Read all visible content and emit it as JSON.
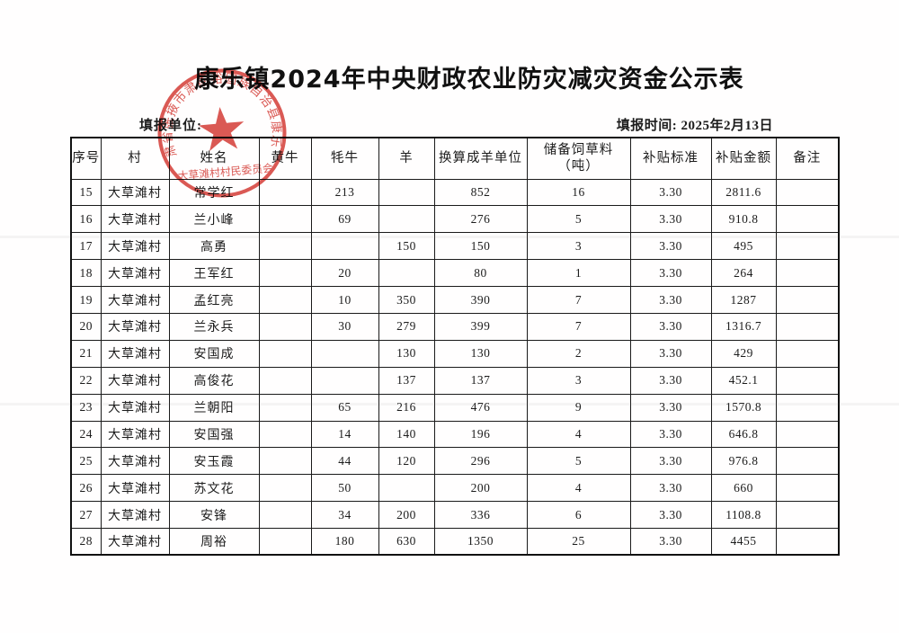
{
  "page": {
    "title": "康乐镇2024年中央财政农业防灾减灾资金公示表",
    "form_unit_label": "填报单位:",
    "form_time_label": "填报时间: 2025年2月13日"
  },
  "seal": {
    "ring_text": "甘肃省张掖市肃南裕固族自治县康乐镇",
    "bottom_text": "大草滩村村民委员会",
    "star_icon": "red-star",
    "color": "#d5423c"
  },
  "table": {
    "headers": [
      "序号",
      "村",
      "姓名",
      "黄牛",
      "牦牛",
      "羊",
      "换算成羊单位",
      "储备饲草料\n（吨）",
      "补贴标准",
      "补贴金额",
      "备注"
    ],
    "rows": [
      [
        "15",
        "大草滩村",
        "常学红",
        "",
        "213",
        "",
        "852",
        "16",
        "3.30",
        "2811.6",
        ""
      ],
      [
        "16",
        "大草滩村",
        "兰小峰",
        "",
        "69",
        "",
        "276",
        "5",
        "3.30",
        "910.8",
        ""
      ],
      [
        "17",
        "大草滩村",
        "高勇",
        "",
        "",
        "150",
        "150",
        "3",
        "3.30",
        "495",
        ""
      ],
      [
        "18",
        "大草滩村",
        "王军红",
        "",
        "20",
        "",
        "80",
        "1",
        "3.30",
        "264",
        ""
      ],
      [
        "19",
        "大草滩村",
        "孟红亮",
        "",
        "10",
        "350",
        "390",
        "7",
        "3.30",
        "1287",
        ""
      ],
      [
        "20",
        "大草滩村",
        "兰永兵",
        "",
        "30",
        "279",
        "399",
        "7",
        "3.30",
        "1316.7",
        ""
      ],
      [
        "21",
        "大草滩村",
        "安国成",
        "",
        "",
        "130",
        "130",
        "2",
        "3.30",
        "429",
        ""
      ],
      [
        "22",
        "大草滩村",
        "高俊花",
        "",
        "",
        "137",
        "137",
        "3",
        "3.30",
        "452.1",
        ""
      ],
      [
        "23",
        "大草滩村",
        "兰朝阳",
        "",
        "65",
        "216",
        "476",
        "9",
        "3.30",
        "1570.8",
        ""
      ],
      [
        "24",
        "大草滩村",
        "安国强",
        "",
        "14",
        "140",
        "196",
        "4",
        "3.30",
        "646.8",
        ""
      ],
      [
        "25",
        "大草滩村",
        "安玉霞",
        "",
        "44",
        "120",
        "296",
        "5",
        "3.30",
        "976.8",
        ""
      ],
      [
        "26",
        "大草滩村",
        "苏文花",
        "",
        "50",
        "",
        "200",
        "4",
        "3.30",
        "660",
        ""
      ],
      [
        "27",
        "大草滩村",
        "安锋",
        "",
        "34",
        "200",
        "336",
        "6",
        "3.30",
        "1108.8",
        ""
      ],
      [
        "28",
        "大草滩村",
        "周裕",
        "",
        "180",
        "630",
        "1350",
        "25",
        "3.30",
        "4455",
        ""
      ]
    ]
  }
}
